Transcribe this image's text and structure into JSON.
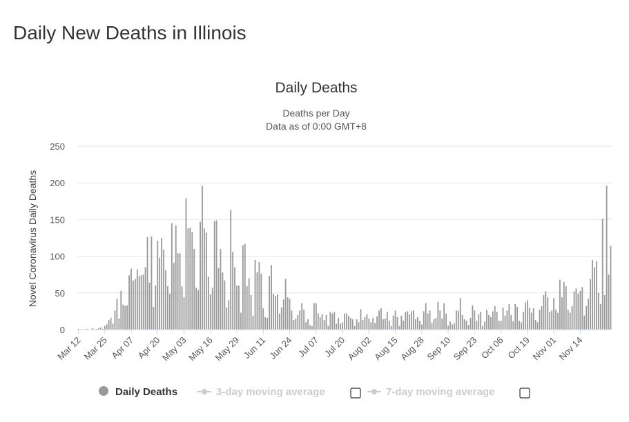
{
  "page": {
    "title": "Daily New Deaths in Illinois"
  },
  "chart_data": {
    "type": "bar",
    "title": "Daily Deaths",
    "subtitle_line1": "Deaths per Day",
    "subtitle_line2": "Data as of 0:00 GMT+8",
    "xlabel": "",
    "ylabel": "Novel Coronavirus Daily Deaths",
    "ylim": [
      0,
      250
    ],
    "yticks": [
      0,
      50,
      100,
      150,
      200,
      250
    ],
    "start_date": "Mar 12",
    "xtick_labels": [
      "Mar 12",
      "Mar 25",
      "Apr 07",
      "Apr 20",
      "May 03",
      "May 16",
      "May 29",
      "Jun 11",
      "Jun 24",
      "Jul 07",
      "Jul 20",
      "Aug 02",
      "Aug 15",
      "Aug 28",
      "Sep 10",
      "Sep 23",
      "Oct 06",
      "Oct 19",
      "Nov 01",
      "Nov 14"
    ],
    "grid": true,
    "legend_position": "bottom",
    "colors": {
      "bars": "#999999",
      "grid": "#e6e6e6",
      "legend_inactive": "#cccccc"
    },
    "legend": [
      {
        "name": "Daily Deaths",
        "active": true
      },
      {
        "name": "3-day moving average",
        "active": false
      },
      {
        "name": "7-day moving average",
        "active": false
      }
    ],
    "values": [
      1,
      0,
      0,
      0,
      1,
      0,
      0,
      2,
      0,
      1,
      2,
      3,
      1,
      5,
      7,
      13,
      16,
      8,
      26,
      42,
      15,
      53,
      34,
      32,
      33,
      74,
      83,
      67,
      69,
      82,
      73,
      74,
      75,
      85,
      126,
      64,
      127,
      31,
      60,
      121,
      98,
      125,
      109,
      81,
      59,
      49,
      145,
      91,
      142,
      104,
      104,
      59,
      44,
      179,
      138,
      139,
      133,
      110,
      57,
      54,
      147,
      196,
      138,
      132,
      72,
      48,
      57,
      148,
      149,
      84,
      110,
      78,
      67,
      30,
      40,
      163,
      106,
      85,
      60,
      60,
      23,
      115,
      117,
      59,
      70,
      47,
      19,
      95,
      78,
      92,
      76,
      29,
      17,
      16,
      73,
      88,
      49,
      46,
      48,
      22,
      30,
      41,
      69,
      44,
      42,
      26,
      13,
      15,
      20,
      26,
      36,
      27,
      10,
      14,
      6,
      5,
      36,
      36,
      22,
      17,
      21,
      13,
      20,
      5,
      24,
      22,
      24,
      8,
      16,
      8,
      10,
      22,
      22,
      19,
      16,
      14,
      5,
      14,
      10,
      28,
      13,
      17,
      21,
      15,
      10,
      16,
      9,
      18,
      26,
      29,
      14,
      15,
      24,
      12,
      5,
      19,
      26,
      17,
      5,
      19,
      12,
      24,
      25,
      21,
      25,
      26,
      14,
      17,
      12,
      7,
      25,
      36,
      22,
      26,
      9,
      14,
      16,
      38,
      26,
      15,
      36,
      22,
      5,
      11,
      7,
      9,
      26,
      26,
      43,
      20,
      14,
      12,
      6,
      16,
      33,
      26,
      12,
      21,
      24,
      5,
      11,
      27,
      20,
      17,
      25,
      32,
      24,
      12,
      12,
      30,
      19,
      26,
      35,
      20,
      11,
      35,
      31,
      12,
      10,
      24,
      37,
      40,
      30,
      23,
      29,
      13,
      10,
      27,
      32,
      47,
      52,
      44,
      24,
      26,
      43,
      27,
      23,
      68,
      44,
      65,
      59,
      27,
      23,
      32,
      52,
      56,
      49,
      53,
      58,
      19,
      32,
      42,
      69,
      95,
      85,
      93,
      50,
      35,
      151,
      47,
      196,
      75,
      114
    ]
  }
}
